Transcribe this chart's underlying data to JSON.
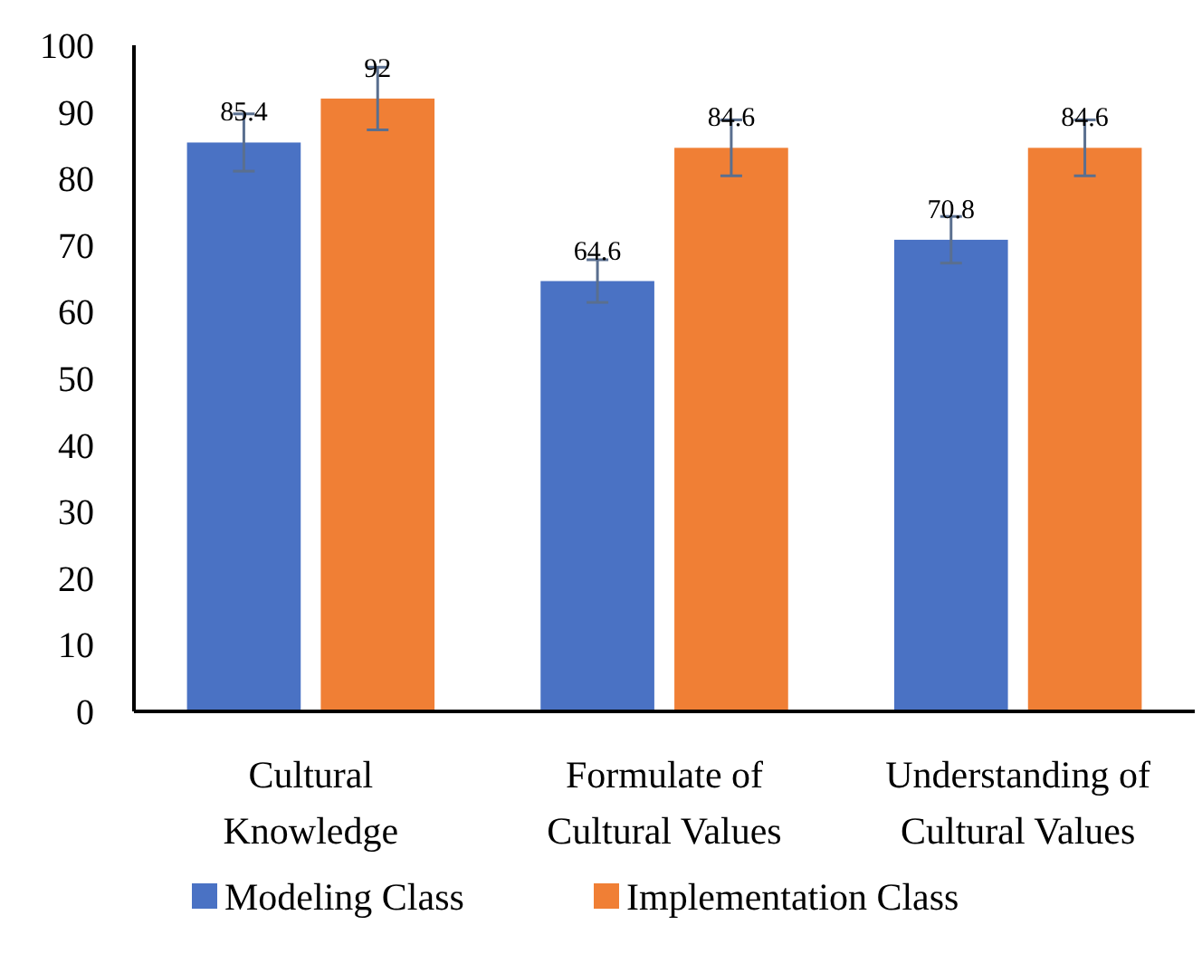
{
  "chart_data": {
    "type": "bar",
    "categories": [
      "Cultural Knowledge",
      "Formulate of Cultural Values",
      "Understanding of Cultural Values"
    ],
    "series": [
      {
        "name": "Modeling Class",
        "color": "#4a72c4",
        "values": [
          85.4,
          64.6,
          70.8
        ],
        "errors": [
          4.3,
          3.2,
          3.5
        ]
      },
      {
        "name": "Implementation Class",
        "color": "#f07f35",
        "values": [
          92,
          84.6,
          84.6
        ],
        "errors": [
          4.7,
          4.2,
          4.2
        ]
      }
    ],
    "ylim": [
      0,
      100
    ],
    "yticks": [
      0,
      10,
      20,
      30,
      40,
      50,
      60,
      70,
      80,
      90,
      100
    ],
    "data_labels": true,
    "legend": "bottom",
    "grid": false
  }
}
